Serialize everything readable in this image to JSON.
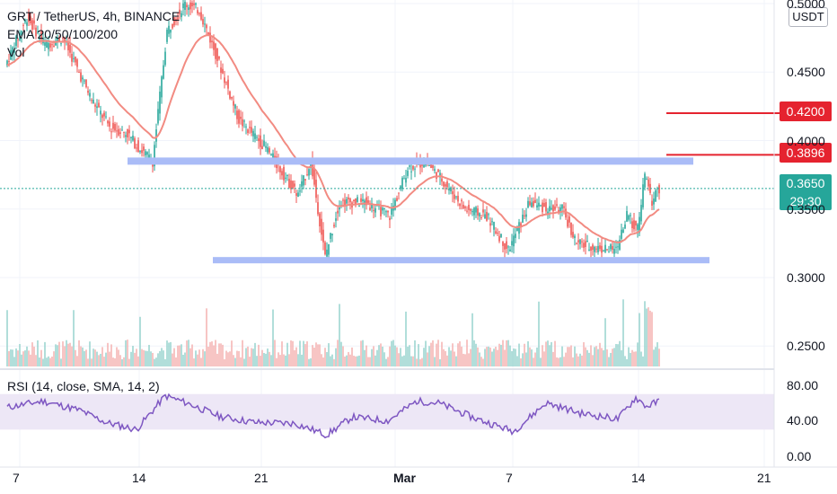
{
  "header": {
    "title": "GRT / TetherUS, 4h, BINANCE",
    "indicator": "EMA 20/50/100/200",
    "volume": "Vol"
  },
  "rsi": {
    "label": "RSI (14, close, SMA, 14, 2)"
  },
  "unit_button": "USDT",
  "badges": {
    "level_1": "0.4200",
    "level_2": "0.3896",
    "price": "0.3650",
    "countdown": "29:30"
  },
  "colors": {
    "up": "#26a69a",
    "down": "#ef5350",
    "ema": "#f28b82",
    "support_line": "#aabcf7",
    "red_line": "#e5232f",
    "rsi_line": "#7e57c2",
    "rsi_band": "#ede7f6"
  },
  "chart_data": {
    "type": "candlestick",
    "symbol": "GRT / TetherUS",
    "interval": "4h",
    "exchange": "BINANCE",
    "price_axis_ticks": [
      "0.5000",
      "0.4500",
      "0.4000",
      "0.3500",
      "0.3000",
      "0.2500"
    ],
    "rsi_axis_ticks": [
      "80.00",
      "40.00",
      "0.00"
    ],
    "x_ticks": [
      "7",
      "14",
      "21",
      "Mar",
      "7",
      "14",
      "21"
    ],
    "current_price": 0.365,
    "horizontal_levels": [
      {
        "price": 0.42,
        "label": "0.4200"
      },
      {
        "price": 0.3896,
        "label": "0.3896"
      }
    ],
    "support_resistance": [
      {
        "price": 0.385
      },
      {
        "price": 0.313
      }
    ],
    "rsi_band": [
      30,
      70
    ],
    "price_path": [
      {
        "t": 0,
        "p": 0.455
      },
      {
        "t": 12,
        "p": 0.49
      },
      {
        "t": 22,
        "p": 0.47
      },
      {
        "t": 32,
        "p": 0.475
      },
      {
        "t": 48,
        "p": 0.43
      },
      {
        "t": 58,
        "p": 0.41
      },
      {
        "t": 68,
        "p": 0.405
      },
      {
        "t": 74,
        "p": 0.395
      },
      {
        "t": 82,
        "p": 0.385
      },
      {
        "t": 90,
        "p": 0.48
      },
      {
        "t": 100,
        "p": 0.5
      },
      {
        "t": 108,
        "p": 0.495
      },
      {
        "t": 118,
        "p": 0.46
      },
      {
        "t": 130,
        "p": 0.415
      },
      {
        "t": 145,
        "p": 0.395
      },
      {
        "t": 155,
        "p": 0.375
      },
      {
        "t": 163,
        "p": 0.36
      },
      {
        "t": 170,
        "p": 0.385
      },
      {
        "t": 178,
        "p": 0.315
      },
      {
        "t": 186,
        "p": 0.355
      },
      {
        "t": 200,
        "p": 0.355
      },
      {
        "t": 214,
        "p": 0.345
      },
      {
        "t": 224,
        "p": 0.38
      },
      {
        "t": 234,
        "p": 0.385
      },
      {
        "t": 244,
        "p": 0.37
      },
      {
        "t": 256,
        "p": 0.35
      },
      {
        "t": 268,
        "p": 0.345
      },
      {
        "t": 280,
        "p": 0.32
      },
      {
        "t": 292,
        "p": 0.355
      },
      {
        "t": 302,
        "p": 0.35
      },
      {
        "t": 310,
        "p": 0.35
      },
      {
        "t": 318,
        "p": 0.325
      },
      {
        "t": 328,
        "p": 0.322
      },
      {
        "t": 340,
        "p": 0.32
      },
      {
        "t": 346,
        "p": 0.345
      },
      {
        "t": 352,
        "p": 0.335
      },
      {
        "t": 356,
        "p": 0.375
      },
      {
        "t": 360,
        "p": 0.355
      },
      {
        "t": 363,
        "p": 0.365
      }
    ],
    "rsi_path": [
      {
        "t": 0,
        "v": 55
      },
      {
        "t": 20,
        "v": 62
      },
      {
        "t": 40,
        "v": 52
      },
      {
        "t": 55,
        "v": 38
      },
      {
        "t": 72,
        "v": 30
      },
      {
        "t": 88,
        "v": 68
      },
      {
        "t": 100,
        "v": 60
      },
      {
        "t": 118,
        "v": 45
      },
      {
        "t": 138,
        "v": 38
      },
      {
        "t": 160,
        "v": 37
      },
      {
        "t": 178,
        "v": 24
      },
      {
        "t": 192,
        "v": 44
      },
      {
        "t": 212,
        "v": 40
      },
      {
        "t": 228,
        "v": 62
      },
      {
        "t": 240,
        "v": 60
      },
      {
        "t": 260,
        "v": 43
      },
      {
        "t": 282,
        "v": 28
      },
      {
        "t": 300,
        "v": 60
      },
      {
        "t": 320,
        "v": 48
      },
      {
        "t": 340,
        "v": 42
      },
      {
        "t": 350,
        "v": 66
      },
      {
        "t": 356,
        "v": 56
      },
      {
        "t": 363,
        "v": 62
      }
    ]
  }
}
